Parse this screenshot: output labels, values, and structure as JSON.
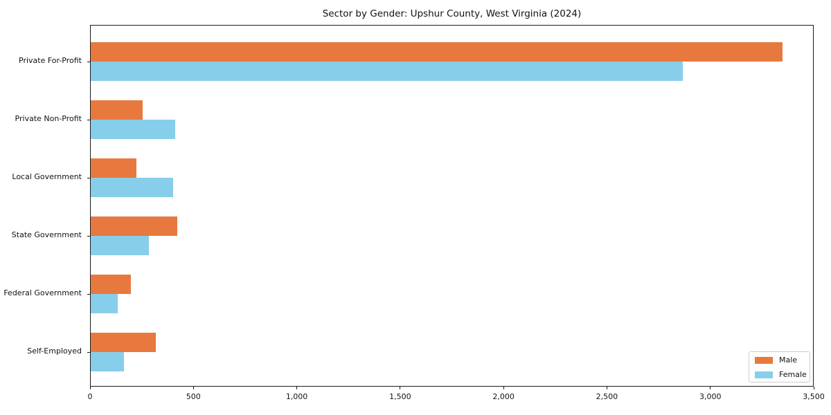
{
  "chart_data": {
    "type": "bar",
    "orientation": "horizontal",
    "title": "Sector by Gender: Upshur County, West Virginia (2024)",
    "categories": [
      "Private For-Profit",
      "Private Non-Profit",
      "Local Government",
      "State Government",
      "Federal Government",
      "Self-Employed"
    ],
    "series": [
      {
        "name": "Male",
        "color": "#e8793e",
        "values": [
          3345,
          250,
          220,
          420,
          195,
          315
        ]
      },
      {
        "name": "Female",
        "color": "#87ceeb",
        "values": [
          2865,
          410,
          400,
          280,
          130,
          160
        ]
      }
    ],
    "xlabel": "",
    "ylabel": "",
    "xlim": [
      0,
      3500
    ],
    "x_ticks": [
      0,
      500,
      1000,
      1500,
      2000,
      2500,
      3000,
      3500
    ],
    "x_tick_labels": [
      "0",
      "500",
      "1,000",
      "1,500",
      "2,000",
      "2,500",
      "3,000",
      "3,500"
    ],
    "grid": false,
    "legend": {
      "position": "lower right"
    },
    "colors": {
      "frame": "#1a1a1a",
      "background": "#ffffff"
    }
  }
}
